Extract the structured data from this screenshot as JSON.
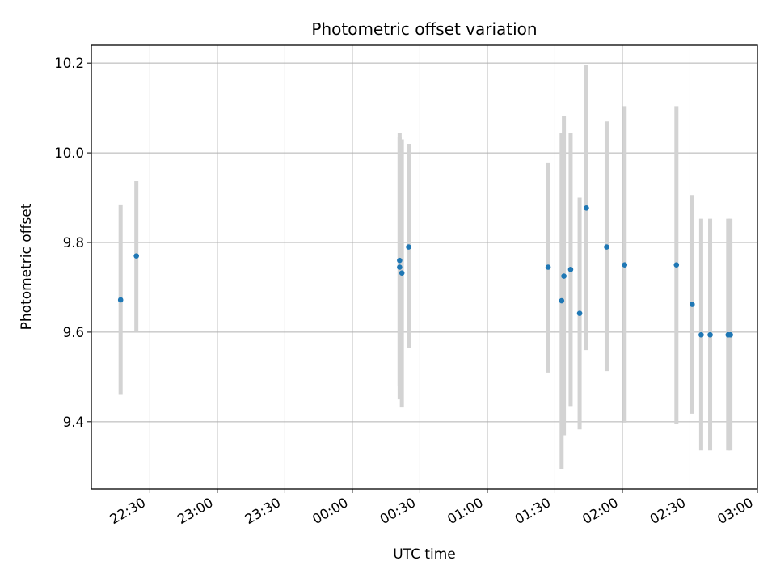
{
  "chart_data": {
    "type": "scatter",
    "title": "Photometric offset variation",
    "xlabel": "UTC time",
    "ylabel": "Photometric offset",
    "x_unit": "UTC time (HH:MM), data spanning 22:00 to 03:00 the next day",
    "xlim": [
      "22:04",
      "03:00"
    ],
    "ylim": [
      9.25,
      10.24
    ],
    "grid": true,
    "legend": "none",
    "x_ticks": [
      "22:30",
      "23:00",
      "23:30",
      "00:00",
      "00:30",
      "01:00",
      "01:30",
      "02:00",
      "02:30",
      "03:00"
    ],
    "y_ticks": [
      "9.4",
      "9.6",
      "9.8",
      "10.0",
      "10.2"
    ],
    "colors": {
      "points": "#1f77b4",
      "errorbars": "#d3d3d3",
      "grid": "#b0b0b0"
    },
    "series": [
      {
        "points": [
          {
            "x": "22:17",
            "y": 9.672,
            "ylow": 9.46,
            "yhigh": 9.885
          },
          {
            "x": "22:24",
            "y": 9.77,
            "ylow": 9.6,
            "yhigh": 9.937
          },
          {
            "x": "00:21",
            "y": 9.76,
            "ylow": 9.48,
            "yhigh": 10.045
          },
          {
            "x": "00:21",
            "y": 9.745,
            "ylow": 9.45,
            "yhigh": 10.035
          },
          {
            "x": "00:22",
            "y": 9.732,
            "ylow": 9.432,
            "yhigh": 10.03
          },
          {
            "x": "00:25",
            "y": 9.79,
            "ylow": 9.565,
            "yhigh": 10.02
          },
          {
            "x": "01:27",
            "y": 9.745,
            "ylow": 9.51,
            "yhigh": 9.977
          },
          {
            "x": "01:33",
            "y": 9.67,
            "ylow": 9.295,
            "yhigh": 10.045
          },
          {
            "x": "01:34",
            "y": 9.725,
            "ylow": 9.37,
            "yhigh": 10.082
          },
          {
            "x": "01:37",
            "y": 9.74,
            "ylow": 9.435,
            "yhigh": 10.045
          },
          {
            "x": "01:41",
            "y": 9.642,
            "ylow": 9.383,
            "yhigh": 9.9
          },
          {
            "x": "01:44",
            "y": 9.877,
            "ylow": 9.56,
            "yhigh": 10.195
          },
          {
            "x": "01:53",
            "y": 9.79,
            "ylow": 9.513,
            "yhigh": 10.07
          },
          {
            "x": "02:01",
            "y": 9.75,
            "ylow": 9.398,
            "yhigh": 10.104
          },
          {
            "x": "02:24",
            "y": 9.75,
            "ylow": 9.396,
            "yhigh": 10.104
          },
          {
            "x": "02:31",
            "y": 9.662,
            "ylow": 9.418,
            "yhigh": 9.906
          },
          {
            "x": "02:35",
            "y": 9.594,
            "ylow": 9.336,
            "yhigh": 9.853
          },
          {
            "x": "02:39",
            "y": 9.594,
            "ylow": 9.336,
            "yhigh": 9.853
          },
          {
            "x": "02:47",
            "y": 9.594,
            "ylow": 9.336,
            "yhigh": 9.853
          },
          {
            "x": "02:48",
            "y": 9.594,
            "ylow": 9.336,
            "yhigh": 9.853
          }
        ]
      }
    ]
  }
}
